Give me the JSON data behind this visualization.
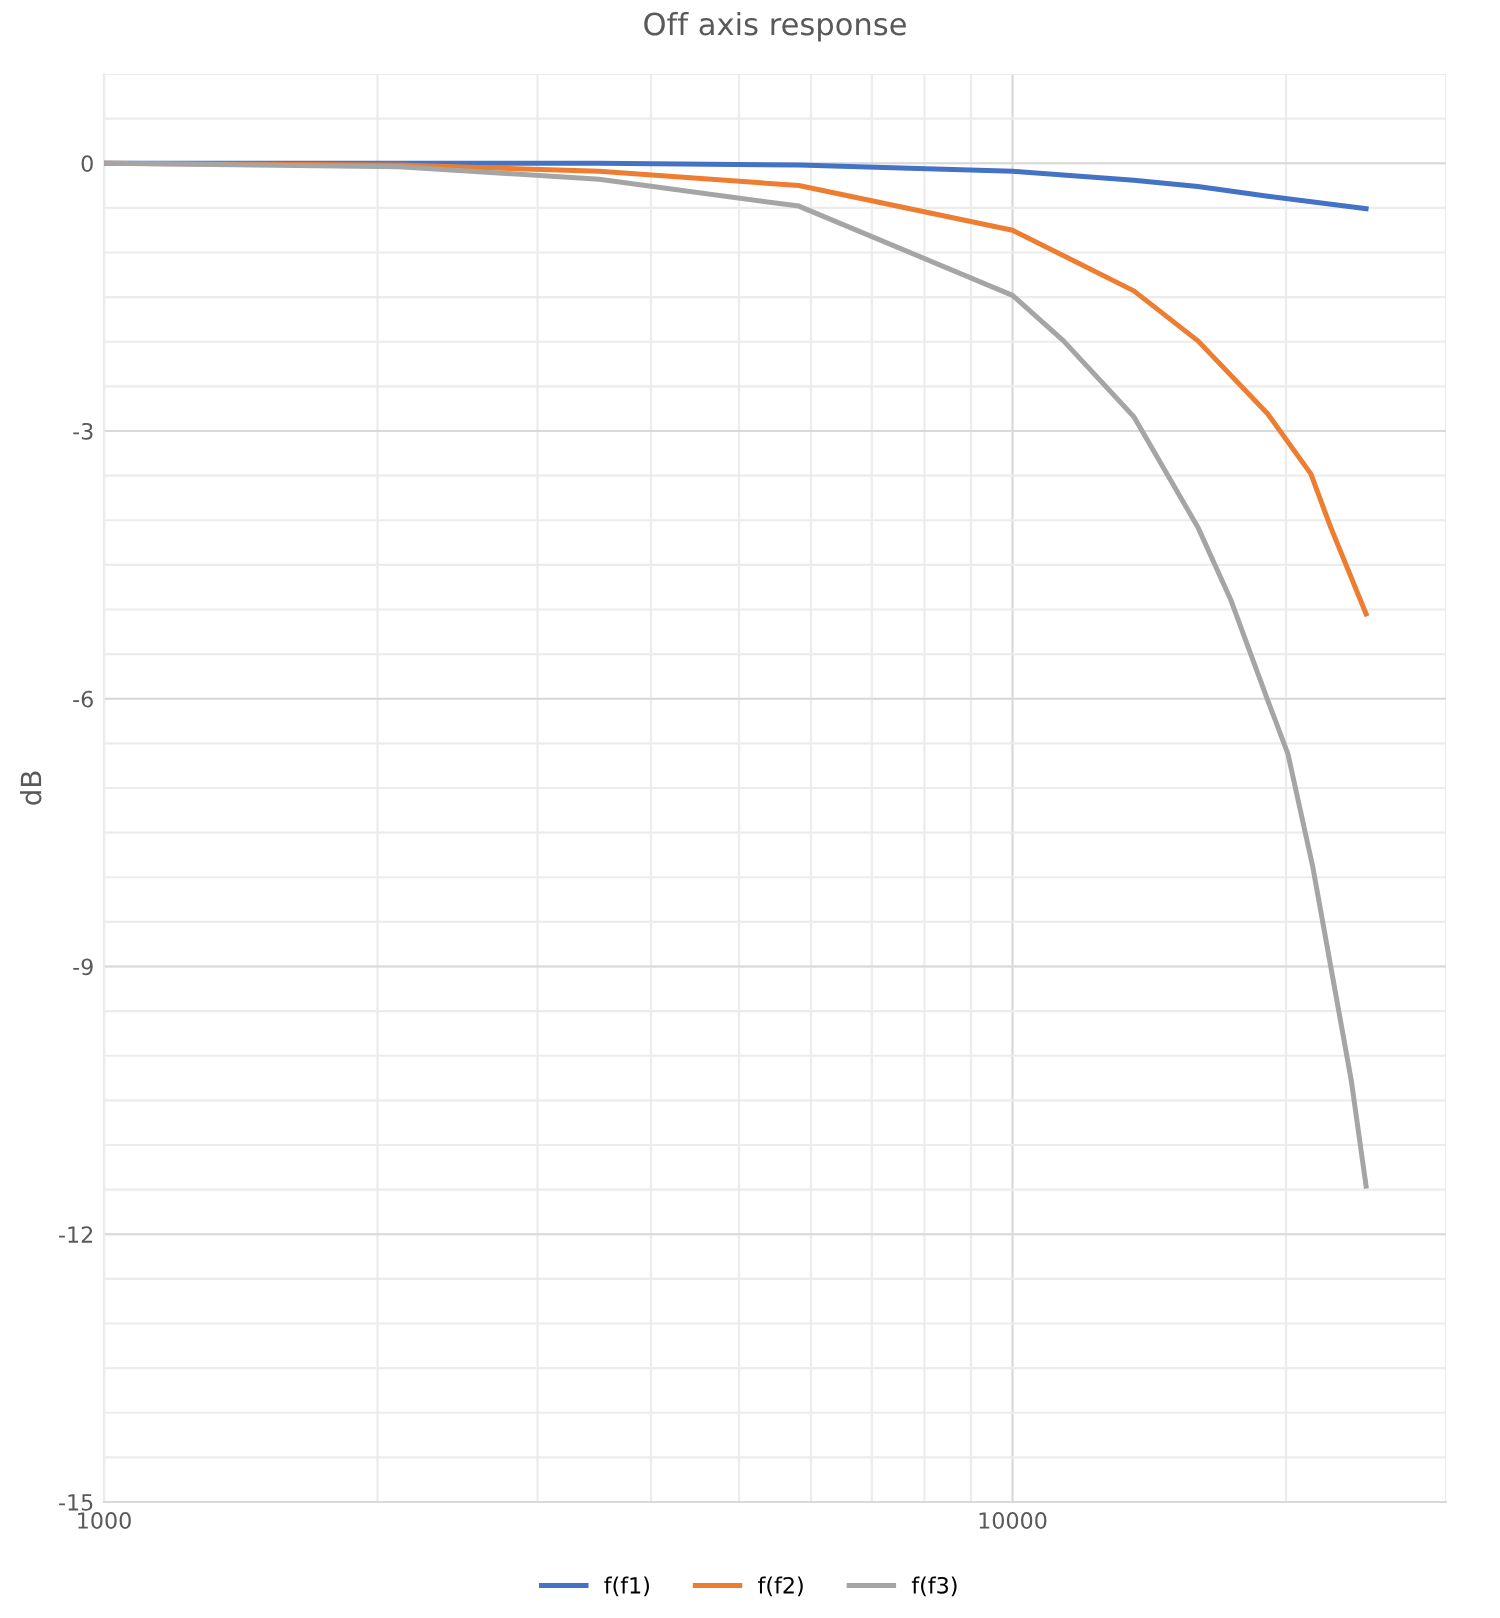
{
  "chart_data": {
    "type": "line",
    "title": "Off axis response",
    "ylabel": "dB",
    "log": "x",
    "xlim": [
      1000,
      30000
    ],
    "xticks": [
      1000,
      10000
    ],
    "ylim": [
      -15,
      1
    ],
    "yticks": [
      -15,
      -12,
      -9,
      -6,
      -3,
      0
    ],
    "grid": true,
    "legend": "bottom",
    "marker": "none",
    "line_style": "solid",
    "series": [
      {
        "name": "f(f1)",
        "color": "#4472c4",
        "x": [
          1000,
          2113,
          3508,
          5818,
          10000,
          13600,
          16000,
          19100,
          24500
        ],
        "values": [
          0,
          0,
          0,
          -0.02,
          -0.09,
          -0.19,
          -0.26,
          -0.37,
          -0.51
        ]
      },
      {
        "name": "f(f2)",
        "color": "#ed7d31",
        "x": [
          1000,
          2113,
          3508,
          5818,
          10000,
          13600,
          16000,
          19100,
          21300,
          22400,
          24500
        ],
        "values": [
          0,
          -0.02,
          -0.09,
          -0.25,
          -0.75,
          -1.43,
          -1.99,
          -2.81,
          -3.48,
          -4.08,
          -5.05
        ]
      },
      {
        "name": "f(f3)",
        "color": "#a5a5a5",
        "x": [
          1000,
          2113,
          3508,
          5818,
          10000,
          11380,
          13600,
          16000,
          17400,
          19100,
          20100,
          21400,
          22400,
          23600,
          24500
        ],
        "values": [
          0,
          -0.04,
          -0.18,
          -0.48,
          -1.48,
          -1.99,
          -2.84,
          -4.08,
          -4.9,
          -6.02,
          -6.62,
          -7.88,
          -9.0,
          -10.28,
          -11.46
        ]
      }
    ]
  }
}
